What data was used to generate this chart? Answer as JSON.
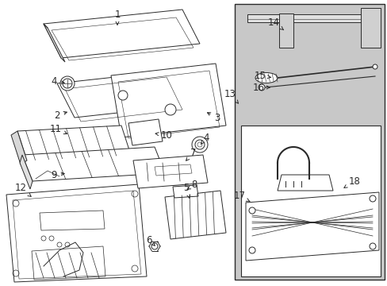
{
  "bg_color": "#ffffff",
  "line_color": "#2a2a2a",
  "gray_bg": "#c8c8c8",
  "figsize": [
    4.89,
    3.6
  ],
  "dpi": 100,
  "labels": {
    "1": [
      148,
      338,
      148,
      325
    ],
    "2": [
      75,
      218,
      92,
      218
    ],
    "3": [
      270,
      213,
      255,
      213
    ],
    "4a": [
      72,
      250,
      88,
      250
    ],
    "4b": [
      258,
      178,
      243,
      180
    ],
    "5": [
      232,
      91,
      232,
      103
    ],
    "6": [
      190,
      56,
      202,
      56
    ],
    "7": [
      240,
      155,
      226,
      157
    ],
    "8": [
      238,
      137,
      225,
      140
    ],
    "9": [
      72,
      145,
      88,
      148
    ],
    "10": [
      205,
      173,
      192,
      170
    ],
    "11": [
      72,
      198,
      88,
      193
    ],
    "12": [
      28,
      87,
      42,
      92
    ],
    "13": [
      296,
      258,
      308,
      240
    ],
    "14": [
      343,
      328,
      358,
      322
    ],
    "15": [
      328,
      264,
      343,
      265
    ],
    "16": [
      328,
      251,
      343,
      252
    ],
    "17": [
      306,
      120,
      322,
      123
    ],
    "18": [
      444,
      132,
      430,
      135
    ]
  }
}
